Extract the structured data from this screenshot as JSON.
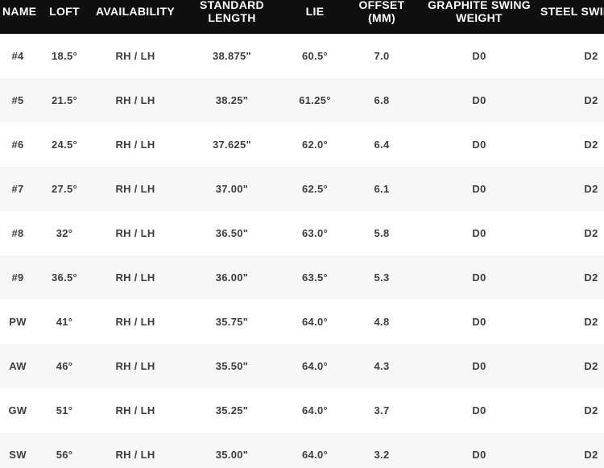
{
  "colors": {
    "header_bg": "#0f0f0f",
    "header_text": "#ffffff",
    "row_odd_bg": "#ffffff",
    "row_even_bg": "#f7f7f7",
    "body_text": "#3d3d3d"
  },
  "chart_data": {
    "type": "table",
    "title": "",
    "columns": [
      "NAME",
      "LOFT",
      "AVAILABILITY",
      "STANDARD LENGTH",
      "LIE",
      "OFFSET (MM)",
      "GRAPHITE SWING WEIGHT",
      "STEEL SWING WEIGHT"
    ],
    "column_keys": [
      "name",
      "loft",
      "availability",
      "standard-length",
      "lie",
      "offset-mm",
      "graphite-swing-weight",
      "steel-swing-weight"
    ],
    "rows": [
      [
        "#4",
        "18.5°",
        "RH / LH",
        "38.875\"",
        "60.5°",
        "7.0",
        "D0",
        "D2"
      ],
      [
        "#5",
        "21.5°",
        "RH / LH",
        "38.25\"",
        "61.25°",
        "6.8",
        "D0",
        "D2"
      ],
      [
        "#6",
        "24.5°",
        "RH / LH",
        "37.625\"",
        "62.0°",
        "6.4",
        "D0",
        "D2"
      ],
      [
        "#7",
        "27.5°",
        "RH / LH",
        "37.00\"",
        "62.5°",
        "6.1",
        "D0",
        "D2"
      ],
      [
        "#8",
        "32°",
        "RH / LH",
        "36.50\"",
        "63.0°",
        "5.8",
        "D0",
        "D2"
      ],
      [
        "#9",
        "36.5°",
        "RH / LH",
        "36.00\"",
        "63.5°",
        "5.3",
        "D0",
        "D2"
      ],
      [
        "PW",
        "41°",
        "RH / LH",
        "35.75\"",
        "64.0°",
        "4.8",
        "D0",
        "D2"
      ],
      [
        "AW",
        "46°",
        "RH / LH",
        "35.50\"",
        "64.0°",
        "4.3",
        "D0",
        "D2"
      ],
      [
        "GW",
        "51°",
        "RH / LH",
        "35.25\"",
        "64.0°",
        "3.7",
        "D0",
        "D2"
      ],
      [
        "SW",
        "56°",
        "RH / LH",
        "35.00\"",
        "64.0°",
        "3.2",
        "D0",
        "D2"
      ]
    ]
  }
}
